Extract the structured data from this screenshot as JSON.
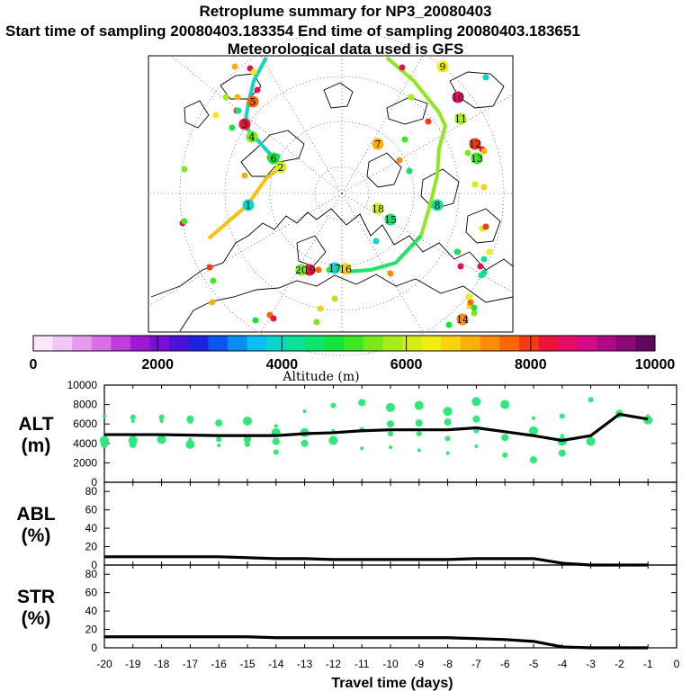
{
  "header": {
    "title": "Retroplume summary for NP3_20080403",
    "sampling": "Start time of sampling 20080403.183354     End time of sampling 20080403.183651",
    "met": "Meteorological data used is GFS"
  },
  "colors": {
    "scale": [
      "#fbe6fb",
      "#f2c6f4",
      "#e79bee",
      "#d86fe6",
      "#c03cdd",
      "#a018d6",
      "#7a10d4",
      "#4a12d6",
      "#1e22df",
      "#0d55ef",
      "#0a8cf4",
      "#08bff2",
      "#0ad6c8",
      "#0ce09a",
      "#0ee46a",
      "#12e63a",
      "#3ee822",
      "#78ea1c",
      "#a8ec18",
      "#d2ee14",
      "#f2ec10",
      "#f8d20c",
      "#fab00a",
      "#fa8c08",
      "#f86606",
      "#f43c10",
      "#ec1438",
      "#e60c66",
      "#d40a88",
      "#b00a86",
      "#8a0a78",
      "#5e0a5c"
    ],
    "markers": "#2ee87a",
    "line": "#000000"
  },
  "map": {
    "day_labels": [
      "1",
      "2",
      "3",
      "4",
      "5",
      "6",
      "7",
      "8",
      "9",
      "10",
      "11",
      "12",
      "13",
      "14",
      "15",
      "16",
      "17",
      "18",
      "19",
      "20"
    ]
  },
  "colorbar": {
    "tick_labels": [
      "0",
      "2000",
      "4000",
      "6000",
      "8000",
      "10000"
    ],
    "label": "Altitude (m)"
  },
  "chart_data": [
    {
      "type": "line",
      "name": "ALT",
      "ylabel": "ALT\n(m)",
      "ylabel_lines": [
        "ALT",
        "(m)"
      ],
      "x": [
        -20,
        -19,
        -18,
        -17,
        -16,
        -15,
        -14,
        -13,
        -12,
        -11,
        -10,
        -9,
        -8,
        -7,
        -6,
        -5,
        -4,
        -3,
        -2,
        -1
      ],
      "values": [
        4900,
        4900,
        4900,
        4850,
        4800,
        4800,
        4800,
        5000,
        5100,
        5300,
        5400,
        5400,
        5400,
        5600,
        5200,
        4800,
        4300,
        4800,
        7000,
        6500
      ],
      "ylim": [
        0,
        10000
      ],
      "yticks": [
        "10000",
        "8000",
        "6000",
        "4000",
        "2000",
        "0"
      ],
      "scatter": [
        [
          -20,
          6800
        ],
        [
          -20,
          4300
        ],
        [
          -20,
          3900
        ],
        [
          -19,
          6700
        ],
        [
          -19,
          6300
        ],
        [
          -19,
          4300
        ],
        [
          -19,
          3900
        ],
        [
          -18,
          6700
        ],
        [
          -18,
          6300
        ],
        [
          -18,
          4400
        ],
        [
          -17,
          6500
        ],
        [
          -17,
          6300
        ],
        [
          -17,
          4400
        ],
        [
          -17,
          3900
        ],
        [
          -16,
          6100
        ],
        [
          -16,
          4400
        ],
        [
          -16,
          3800
        ],
        [
          -15,
          6300
        ],
        [
          -15,
          4400
        ],
        [
          -15,
          3900
        ],
        [
          -14,
          5800
        ],
        [
          -14,
          5100
        ],
        [
          -14,
          4200
        ],
        [
          -14,
          3100
        ],
        [
          -13,
          7300
        ],
        [
          -13,
          5100
        ],
        [
          -13,
          4000
        ],
        [
          -12,
          7900
        ],
        [
          -12,
          5300
        ],
        [
          -12,
          4300
        ],
        [
          -11,
          8200
        ],
        [
          -11,
          5400
        ],
        [
          -11,
          3500
        ],
        [
          -10,
          7700
        ],
        [
          -10,
          6000
        ],
        [
          -10,
          5000
        ],
        [
          -10,
          3600
        ],
        [
          -9,
          7900
        ],
        [
          -9,
          6100
        ],
        [
          -9,
          5000
        ],
        [
          -9,
          3300
        ],
        [
          -8,
          7300
        ],
        [
          -8,
          6200
        ],
        [
          -8,
          4500
        ],
        [
          -8,
          3000
        ],
        [
          -7,
          8300
        ],
        [
          -7,
          6500
        ],
        [
          -7,
          5300
        ],
        [
          -7,
          3700
        ],
        [
          -6,
          8000
        ],
        [
          -6,
          4600
        ],
        [
          -6,
          2800
        ],
        [
          -5,
          6600
        ],
        [
          -5,
          5300
        ],
        [
          -5,
          2300
        ],
        [
          -4,
          6800
        ],
        [
          -4,
          4800
        ],
        [
          -4,
          4200
        ],
        [
          -4,
          3000
        ],
        [
          -3,
          8500
        ],
        [
          -3,
          4400
        ],
        [
          -3,
          4200
        ],
        [
          -2,
          7100
        ],
        [
          -2,
          6900
        ],
        [
          -1,
          6800
        ],
        [
          -1,
          6400
        ]
      ]
    },
    {
      "type": "line",
      "name": "ABL",
      "ylabel": "ABL\n(%)",
      "ylabel_lines": [
        "ABL",
        "(%)"
      ],
      "x": [
        -20,
        -19,
        -18,
        -17,
        -16,
        -15,
        -14,
        -13,
        -12,
        -11,
        -10,
        -9,
        -8,
        -7,
        -6,
        -5,
        -4,
        -3,
        -2,
        -1
      ],
      "values": [
        9,
        9,
        9,
        9,
        9,
        8,
        7,
        7,
        6,
        6,
        6,
        6,
        6,
        7,
        7,
        7,
        2,
        0,
        0,
        0
      ],
      "ylim": [
        0,
        90
      ],
      "yticks": [
        "80",
        "60",
        "40",
        "20",
        "0"
      ]
    },
    {
      "type": "line",
      "name": "STR",
      "ylabel": "STR\n(%)",
      "ylabel_lines": [
        "STR",
        "(%)"
      ],
      "x": [
        -20,
        -19,
        -18,
        -17,
        -16,
        -15,
        -14,
        -13,
        -12,
        -11,
        -10,
        -9,
        -8,
        -7,
        -6,
        -5,
        -4,
        -3,
        -2,
        -1
      ],
      "values": [
        12,
        12,
        12,
        12,
        12,
        12,
        11,
        11,
        11,
        11,
        11,
        11,
        11,
        10,
        9,
        7,
        1,
        0,
        0,
        0
      ],
      "ylim": [
        0,
        90
      ],
      "yticks": [
        "80",
        "60",
        "40",
        "20",
        "0"
      ],
      "xlabel": "Travel time (days)",
      "xticks": [
        "-20",
        "-19",
        "-18",
        "-17",
        "-16",
        "-15",
        "-14",
        "-13",
        "-12",
        "-11",
        "-10",
        "-9",
        "-8",
        "-7",
        "-6",
        "-5",
        "-4",
        "-3",
        "-2",
        "-1",
        "0"
      ]
    }
  ]
}
